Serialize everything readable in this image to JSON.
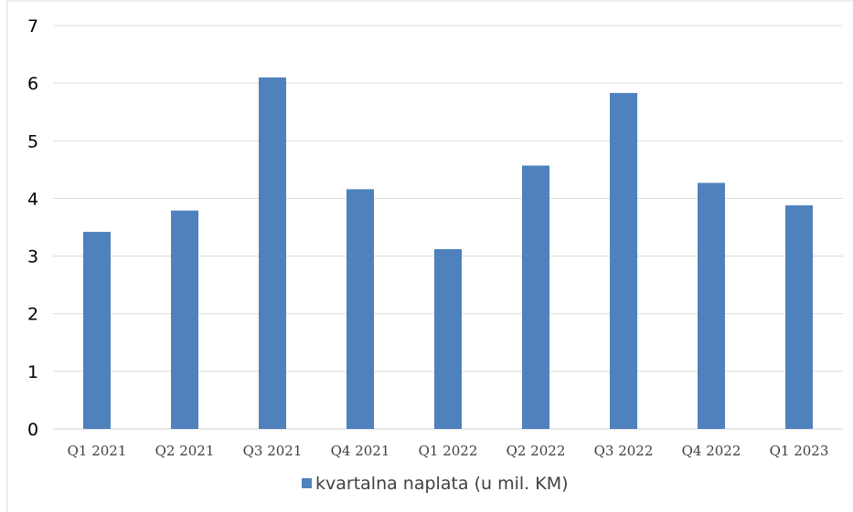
{
  "chart_data": {
    "type": "bar",
    "categories": [
      "Q1 2021",
      "Q2 2021",
      "Q3 2021",
      "Q4 2021",
      "Q1 2022",
      "Q2 2022",
      "Q3 2022",
      "Q4 2022",
      "Q1 2023"
    ],
    "series": [
      {
        "name": "kvartalna naplata (u mil. KM)",
        "values": [
          3.42,
          3.79,
          6.1,
          4.16,
          3.12,
          4.57,
          5.83,
          4.27,
          3.88
        ],
        "color": "#4f81bd"
      }
    ],
    "yticks": [
      "0",
      "1",
      "2",
      "3",
      "4",
      "5",
      "6",
      "7"
    ],
    "ylim": [
      0,
      7
    ],
    "grid": true,
    "legend_position": "bottom-center",
    "title": "",
    "xlabel": "",
    "ylabel": ""
  }
}
